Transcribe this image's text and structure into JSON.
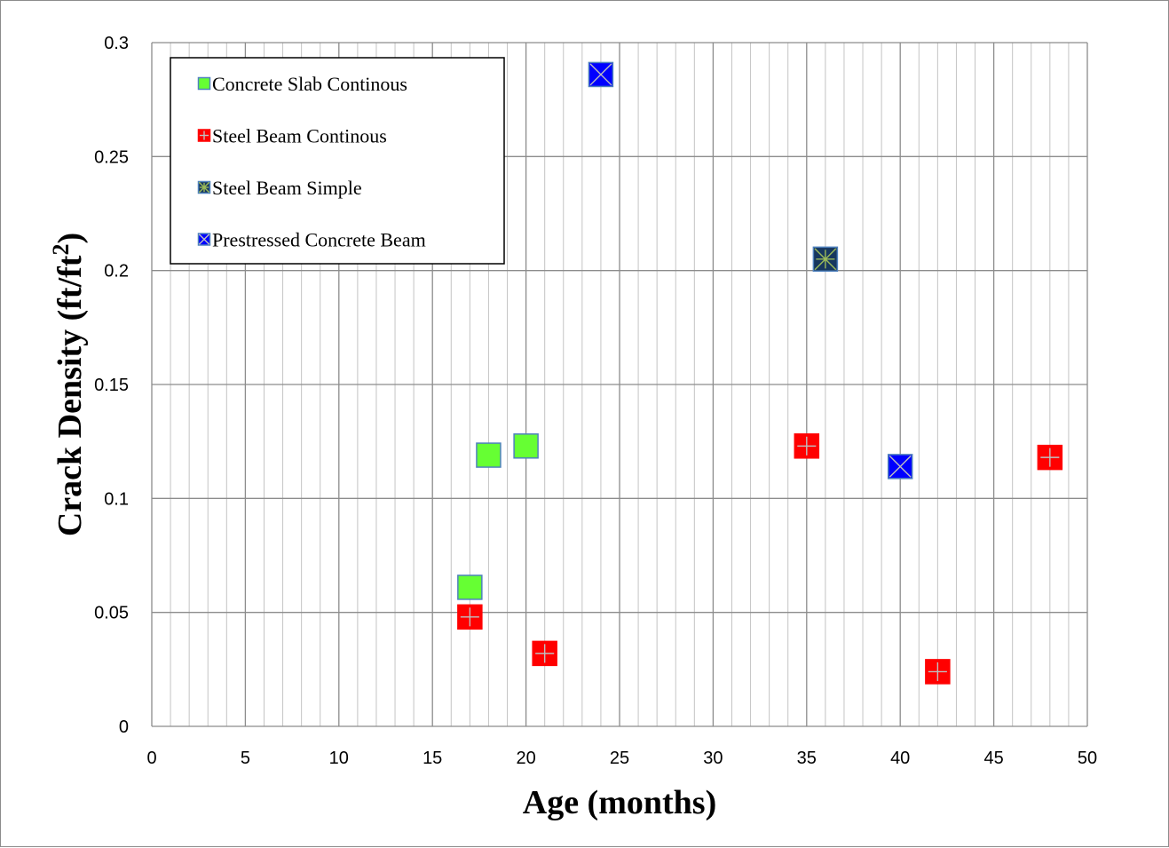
{
  "chart_data": {
    "type": "scatter",
    "title": "",
    "xlabel": "Age (months)",
    "ylabel_main": "Crack Density (ft/ft",
    "ylabel_sup": "2",
    "ylabel_end": ")",
    "xlim": [
      0,
      50
    ],
    "ylim": [
      0,
      0.3
    ],
    "x_major_ticks": [
      "0",
      "5",
      "10",
      "15",
      "20",
      "25",
      "30",
      "35",
      "40",
      "45",
      "50"
    ],
    "y_major_ticks": [
      "0",
      "0.05",
      "0.1",
      "0.15",
      "0.2",
      "0.25",
      "0.3"
    ],
    "x_minor_step": 1,
    "grid": true,
    "legend_position": "top-left",
    "series": [
      {
        "name": "Concrete Slab Continous",
        "marker": "square-plain",
        "fill": "#66ff33",
        "edge": "#4f81bd",
        "points": [
          [
            17,
            0.061
          ],
          [
            18,
            0.119
          ],
          [
            20,
            0.123
          ]
        ]
      },
      {
        "name": "Steel Beam Continous",
        "marker": "square-plus",
        "fill": "#ff0000",
        "edge": "#ff0000",
        "cross": "#bfbfbf",
        "points": [
          [
            17,
            0.048
          ],
          [
            21,
            0.032
          ],
          [
            35,
            0.123
          ],
          [
            42,
            0.024
          ],
          [
            48,
            0.118
          ]
        ]
      },
      {
        "name": "Steel Beam Simple",
        "marker": "square-star",
        "fill": "#17375e",
        "edge": "#4f81bd",
        "cross": "#9bbb59",
        "points": [
          [
            36,
            0.205
          ]
        ]
      },
      {
        "name": "Prestressed Concrete Beam",
        "marker": "square-x",
        "fill": "#0000ff",
        "edge": "#4f81bd",
        "cross": "#bfbfbf",
        "points": [
          [
            24,
            0.286
          ],
          [
            40,
            0.114
          ]
        ]
      }
    ]
  }
}
